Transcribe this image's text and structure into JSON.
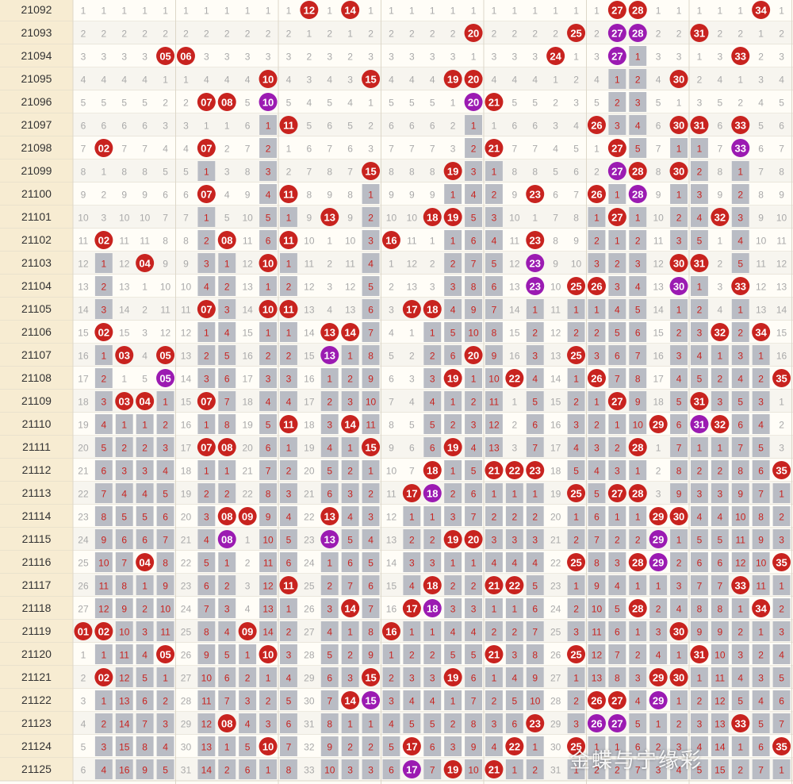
{
  "chart_data": {
    "type": "table",
    "title": "",
    "columns": 35,
    "rows": [
      {
        "issue": "21092",
        "reds": [
          12,
          14,
          27,
          28,
          34
        ],
        "purples": []
      },
      {
        "issue": "21093",
        "reds": [
          20,
          25,
          31
        ],
        "purples": [
          27,
          28
        ]
      },
      {
        "issue": "21094",
        "reds": [
          5,
          6,
          24,
          33
        ],
        "purples": [
          27
        ]
      },
      {
        "issue": "21095",
        "reds": [
          10,
          15,
          19,
          20,
          30
        ],
        "purples": []
      },
      {
        "issue": "21096",
        "reds": [
          7,
          8,
          20,
          21
        ],
        "purples": [
          10,
          20
        ]
      },
      {
        "issue": "21097",
        "reds": [
          11,
          26,
          30,
          31,
          33
        ],
        "purples": []
      },
      {
        "issue": "21098",
        "reds": [
          2,
          7,
          21,
          27
        ],
        "purples": [
          33
        ]
      },
      {
        "issue": "21099",
        "reds": [
          15,
          19,
          28,
          30
        ],
        "purples": [
          27
        ]
      },
      {
        "issue": "21100",
        "reds": [
          7,
          11,
          23,
          26
        ],
        "purples": [
          28
        ]
      },
      {
        "issue": "21101",
        "reds": [
          13,
          18,
          19,
          27,
          32
        ],
        "purples": []
      },
      {
        "issue": "21102",
        "reds": [
          2,
          8,
          11,
          16,
          23
        ],
        "purples": []
      },
      {
        "issue": "21103",
        "reds": [
          4,
          10,
          30,
          31
        ],
        "purples": [
          23
        ]
      },
      {
        "issue": "21104",
        "reds": [
          25,
          26,
          33
        ],
        "purples": [
          23,
          30
        ]
      },
      {
        "issue": "21105",
        "reds": [
          7,
          10,
          11,
          17,
          18
        ],
        "purples": []
      },
      {
        "issue": "21106",
        "reds": [
          2,
          13,
          14,
          32,
          34
        ],
        "purples": []
      },
      {
        "issue": "21107",
        "reds": [
          3,
          5,
          20,
          25
        ],
        "purples": [
          13
        ]
      },
      {
        "issue": "21108",
        "reds": [
          19,
          22,
          26,
          35
        ],
        "purples": [
          5
        ]
      },
      {
        "issue": "21109",
        "reds": [
          3,
          4,
          7,
          27,
          31
        ],
        "purples": []
      },
      {
        "issue": "21110",
        "reds": [
          11,
          14,
          29,
          32
        ],
        "purples": [
          31
        ]
      },
      {
        "issue": "21111",
        "reds": [
          7,
          8,
          15,
          19,
          28
        ],
        "purples": []
      },
      {
        "issue": "21112",
        "reds": [
          18,
          21,
          22,
          23,
          35
        ],
        "purples": []
      },
      {
        "issue": "21113",
        "reds": [
          17,
          25,
          27,
          28
        ],
        "purples": [
          18
        ]
      },
      {
        "issue": "21114",
        "reds": [
          8,
          9,
          13,
          29,
          30
        ],
        "purples": []
      },
      {
        "issue": "21115",
        "reds": [
          19,
          20
        ],
        "purples": [
          8,
          13,
          29
        ]
      },
      {
        "issue": "21116",
        "reds": [
          4,
          25,
          28,
          35
        ],
        "purples": [
          29
        ]
      },
      {
        "issue": "21117",
        "reds": [
          11,
          18,
          21,
          22,
          33
        ],
        "purples": []
      },
      {
        "issue": "21118",
        "reds": [
          14,
          17,
          28,
          34
        ],
        "purples": [
          18
        ]
      },
      {
        "issue": "21119",
        "reds": [
          1,
          2,
          9,
          16,
          30
        ],
        "purples": []
      },
      {
        "issue": "21120",
        "reds": [
          5,
          10,
          21,
          25,
          31
        ],
        "purples": []
      },
      {
        "issue": "21121",
        "reds": [
          2,
          15,
          19,
          29,
          30
        ],
        "purples": []
      },
      {
        "issue": "21122",
        "reds": [
          14,
          26,
          27
        ],
        "purples": [
          15,
          29
        ]
      },
      {
        "issue": "21123",
        "reds": [
          8,
          23,
          33
        ],
        "purples": [
          26,
          27
        ]
      },
      {
        "issue": "21124",
        "reds": [
          10,
          17,
          22,
          25,
          35
        ],
        "purples": []
      },
      {
        "issue": "21125",
        "reds": [
          19,
          21
        ],
        "purples": [
          17
        ]
      }
    ]
  },
  "watermark": "金蝶与宁缘彩",
  "colors": {
    "red": "#c8231f",
    "purple": "#9b1bb2",
    "miss_text": "#a9a9a9",
    "streak_bg": "#b9bcc4",
    "streak_text": "#c8231f",
    "blue_text": "#2c35b8",
    "row_a": "#fffdf7",
    "row_b": "#f7f5ef",
    "issue_bg": "#f7ecd2",
    "grid": "#ddd7c8"
  }
}
